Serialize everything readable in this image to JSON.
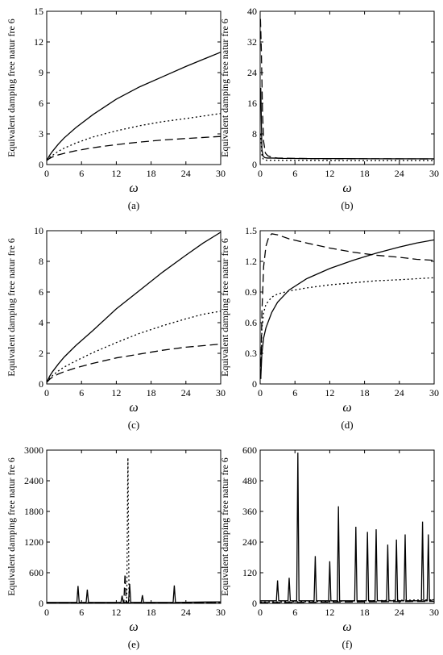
{
  "chart_data": [
    {
      "type": "line",
      "caption": "(a)",
      "xlabel": "ω",
      "ylabel": "Equivalent damping free natur fre 6",
      "xlim": [
        0,
        30
      ],
      "ylim": [
        0,
        15
      ],
      "xticks": [
        0,
        6,
        12,
        18,
        24,
        30
      ],
      "yticks": [
        0,
        3,
        6,
        9,
        12,
        15
      ],
      "series": [
        {
          "style": "solid",
          "x": [
            0,
            0.5,
            1,
            2,
            3,
            5,
            8,
            12,
            16,
            20,
            24,
            27,
            30
          ],
          "y": [
            0.4,
            0.9,
            1.3,
            2.0,
            2.6,
            3.6,
            4.9,
            6.4,
            7.6,
            8.6,
            9.6,
            10.3,
            11.0
          ]
        },
        {
          "style": "dotted",
          "x": [
            0,
            0.5,
            1,
            2,
            3,
            5,
            8,
            12,
            16,
            20,
            24,
            27,
            30
          ],
          "y": [
            0.4,
            0.7,
            0.9,
            1.3,
            1.6,
            2.1,
            2.7,
            3.3,
            3.8,
            4.2,
            4.5,
            4.75,
            5.0
          ]
        },
        {
          "style": "dashed",
          "x": [
            0,
            0.5,
            1,
            2,
            3,
            5,
            8,
            12,
            16,
            20,
            24,
            27,
            30
          ],
          "y": [
            0.4,
            0.6,
            0.75,
            0.95,
            1.1,
            1.35,
            1.65,
            1.95,
            2.2,
            2.4,
            2.55,
            2.65,
            2.75
          ]
        }
      ]
    },
    {
      "type": "line",
      "caption": "(b)",
      "xlabel": "ω",
      "ylabel": "Equivalent damping free natur fre 6",
      "xlim": [
        0,
        30
      ],
      "ylim": [
        0,
        40
      ],
      "xticks": [
        0,
        6,
        12,
        18,
        24,
        30
      ],
      "yticks": [
        0,
        8,
        16,
        24,
        32,
        40
      ],
      "series": [
        {
          "style": "solid",
          "x": [
            0.1,
            0.3,
            0.5,
            0.8,
            1.2,
            2,
            4,
            8,
            14,
            20,
            26,
            30
          ],
          "y": [
            20,
            4,
            2.2,
            1.8,
            1.7,
            1.7,
            1.6,
            1.55,
            1.55,
            1.5,
            1.5,
            1.5
          ]
        },
        {
          "style": "dotted",
          "x": [
            0.1,
            0.3,
            0.5,
            0.8,
            1.2,
            2,
            4,
            8,
            14,
            20,
            26,
            30
          ],
          "y": [
            8,
            2.5,
            1.5,
            1.2,
            1.1,
            1.1,
            1.1,
            1.1,
            1.05,
            1.05,
            1.05,
            1.05
          ]
        },
        {
          "style": "dashed",
          "x": [
            0.05,
            0.2,
            0.4,
            0.6,
            0.9,
            1.3,
            2,
            3,
            6,
            12,
            20,
            30
          ],
          "y": [
            38,
            30,
            14,
            6,
            3,
            2.3,
            1.9,
            1.7,
            1.6,
            1.5,
            1.5,
            1.45
          ]
        }
      ]
    },
    {
      "type": "line",
      "caption": "(c)",
      "xlabel": "ω",
      "ylabel": "Equivalent damping free natur fre 6",
      "xlim": [
        0,
        30
      ],
      "ylim": [
        0,
        10
      ],
      "xticks": [
        0,
        6,
        12,
        18,
        24,
        30
      ],
      "yticks": [
        0,
        2,
        4,
        6,
        8,
        10
      ],
      "series": [
        {
          "style": "solid",
          "x": [
            0,
            0.5,
            1,
            2,
            3,
            5,
            8,
            12,
            16,
            20,
            24,
            27,
            30
          ],
          "y": [
            0.1,
            0.5,
            0.8,
            1.3,
            1.75,
            2.5,
            3.5,
            4.9,
            6.1,
            7.3,
            8.4,
            9.2,
            9.9
          ]
        },
        {
          "style": "dotted",
          "x": [
            0,
            0.5,
            1,
            2,
            3,
            5,
            8,
            12,
            16,
            20,
            24,
            27,
            30
          ],
          "y": [
            0.1,
            0.35,
            0.55,
            0.85,
            1.1,
            1.5,
            2.05,
            2.7,
            3.3,
            3.8,
            4.25,
            4.55,
            4.75
          ]
        },
        {
          "style": "dashed",
          "x": [
            0,
            0.5,
            1,
            2,
            3,
            5,
            8,
            12,
            16,
            20,
            24,
            27,
            30
          ],
          "y": [
            0.1,
            0.3,
            0.45,
            0.65,
            0.8,
            1.05,
            1.35,
            1.7,
            1.95,
            2.2,
            2.4,
            2.5,
            2.6
          ]
        }
      ]
    },
    {
      "type": "line",
      "caption": "(d)",
      "xlabel": "ω",
      "ylabel": "Equivalent damping free natur fre 6",
      "xlim": [
        0,
        30
      ],
      "ylim": [
        0,
        1.5
      ],
      "xticks": [
        0,
        6,
        12,
        18,
        24,
        30
      ],
      "yticks": [
        0,
        0.3,
        0.6,
        0.9,
        1.2,
        1.5
      ],
      "series": [
        {
          "style": "solid",
          "x": [
            0.1,
            0.3,
            0.6,
            1,
            2,
            3,
            5,
            8,
            12,
            16,
            20,
            24,
            27,
            30
          ],
          "y": [
            0.05,
            0.3,
            0.45,
            0.55,
            0.7,
            0.8,
            0.92,
            1.03,
            1.13,
            1.21,
            1.28,
            1.34,
            1.38,
            1.41
          ]
        },
        {
          "style": "dotted",
          "x": [
            0.1,
            0.3,
            0.6,
            1,
            2,
            3,
            5,
            8,
            12,
            16,
            20,
            24,
            27,
            30
          ],
          "y": [
            0.05,
            0.55,
            0.7,
            0.78,
            0.85,
            0.88,
            0.91,
            0.94,
            0.97,
            0.99,
            1.01,
            1.02,
            1.03,
            1.04
          ]
        },
        {
          "style": "dashed",
          "x": [
            0.1,
            0.3,
            0.6,
            1,
            1.5,
            2,
            3,
            5,
            8,
            12,
            16,
            20,
            24,
            27,
            30
          ],
          "y": [
            0.05,
            0.7,
            1.15,
            1.35,
            1.44,
            1.47,
            1.46,
            1.42,
            1.38,
            1.33,
            1.29,
            1.26,
            1.24,
            1.22,
            1.21
          ]
        }
      ]
    },
    {
      "type": "line",
      "caption": "(e)",
      "xlabel": "ω",
      "ylabel": "Equivalent damping free natur fre 6",
      "xlim": [
        0,
        30
      ],
      "ylim": [
        0,
        3000
      ],
      "xticks": [
        0,
        6,
        12,
        18,
        24,
        30
      ],
      "yticks": [
        0,
        600,
        1200,
        1800,
        2400,
        3000
      ],
      "series": [
        {
          "style": "solid",
          "x": [
            0,
            5.2,
            5.4,
            5.6,
            6.8,
            7,
            7.2,
            12.8,
            13,
            13.2,
            14.1,
            14.3,
            14.5,
            16.3,
            16.5,
            16.7,
            21.8,
            22,
            22.2,
            30
          ],
          "y": [
            20,
            20,
            340,
            20,
            20,
            270,
            20,
            20,
            150,
            20,
            20,
            380,
            20,
            20,
            160,
            20,
            20,
            350,
            20,
            30
          ]
        },
        {
          "style": "dotted",
          "x": [
            0,
            13.8,
            14.0,
            14.2,
            30
          ],
          "y": [
            10,
            10,
            2850,
            10,
            15
          ]
        },
        {
          "style": "dashed",
          "x": [
            0,
            13.3,
            13.5,
            13.7,
            30
          ],
          "y": [
            5,
            5,
            580,
            5,
            10
          ]
        }
      ]
    },
    {
      "type": "line",
      "caption": "(f)",
      "xlabel": "ω",
      "ylabel": "Equivalent damping free natur fre 6",
      "xlim": [
        0,
        30
      ],
      "ylim": [
        0,
        600
      ],
      "xticks": [
        0,
        6,
        12,
        18,
        24,
        30
      ],
      "yticks": [
        0,
        120,
        240,
        360,
        480,
        600
      ],
      "series": [
        {
          "style": "solid",
          "x": [
            0,
            2.8,
            3,
            3.2,
            4.8,
            5,
            5.2,
            6.3,
            6.5,
            6.7,
            9.3,
            9.5,
            9.7,
            11.8,
            12,
            12.2,
            13.3,
            13.5,
            13.7,
            16.3,
            16.5,
            16.7,
            18.3,
            18.5,
            18.7,
            19.8,
            20,
            20.2,
            21.8,
            22,
            22.2,
            23.3,
            23.5,
            23.7,
            24.8,
            25,
            25.2,
            27.8,
            28,
            28.2,
            28.8,
            29,
            29.2,
            30
          ],
          "y": [
            10,
            10,
            90,
            10,
            10,
            100,
            10,
            10,
            590,
            10,
            10,
            185,
            10,
            10,
            165,
            10,
            10,
            380,
            10,
            10,
            300,
            10,
            10,
            280,
            10,
            10,
            290,
            10,
            10,
            230,
            10,
            10,
            250,
            10,
            10,
            270,
            10,
            10,
            320,
            10,
            10,
            270,
            10,
            15
          ]
        },
        {
          "style": "dotted",
          "x": [
            0,
            6,
            12,
            18,
            24,
            30
          ],
          "y": [
            5,
            6,
            8,
            10,
            12,
            14
          ]
        },
        {
          "style": "dashed",
          "x": [
            0,
            6,
            12,
            18,
            24,
            30
          ],
          "y": [
            3,
            4,
            5,
            6,
            7,
            8
          ]
        }
      ]
    }
  ]
}
